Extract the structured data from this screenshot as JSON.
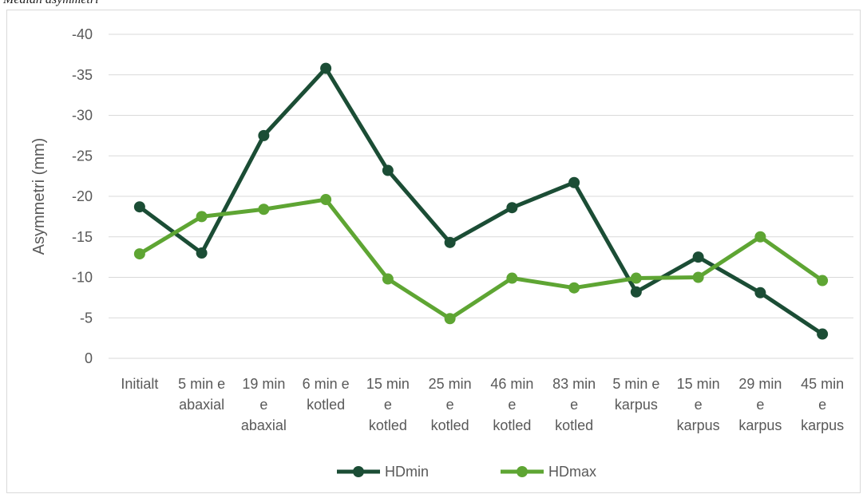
{
  "caption": "Median asymmetri",
  "chart_data": {
    "type": "line",
    "title": "",
    "xlabel": "",
    "ylabel": "Asymmetri (mm)",
    "y_axis_reversed": true,
    "ylim": [
      -40,
      0
    ],
    "yticks": [
      -40,
      -35,
      -30,
      -25,
      -20,
      -15,
      -10,
      -5,
      0
    ],
    "grid": true,
    "legend_position": "bottom",
    "categories": [
      [
        "Initialt"
      ],
      [
        "5 min e",
        "abaxial"
      ],
      [
        "19 min",
        "e",
        "abaxial"
      ],
      [
        "6 min e",
        "kotled"
      ],
      [
        "15 min",
        "e",
        "kotled"
      ],
      [
        "25 min",
        "e",
        "kotled"
      ],
      [
        "46 min",
        "e",
        "kotled"
      ],
      [
        "83 min",
        "e",
        "kotled"
      ],
      [
        "5 min e",
        "karpus"
      ],
      [
        "15 min",
        "e",
        "karpus"
      ],
      [
        "29 min",
        "e",
        "karpus"
      ],
      [
        "45 min",
        "e",
        "karpus"
      ]
    ],
    "series": [
      {
        "name": "HDmin",
        "color": "#1b4d35",
        "values": [
          -18.7,
          -13.0,
          -27.5,
          -35.8,
          -23.2,
          -14.3,
          -18.6,
          -21.7,
          -8.2,
          -12.5,
          -8.1,
          -3.0
        ]
      },
      {
        "name": "HDmax",
        "color": "#5ea533",
        "values": [
          -12.9,
          -17.5,
          -18.4,
          -19.6,
          -9.8,
          -4.9,
          -9.9,
          -8.7,
          -9.9,
          -10.0,
          -15.0,
          -9.6
        ]
      }
    ]
  }
}
